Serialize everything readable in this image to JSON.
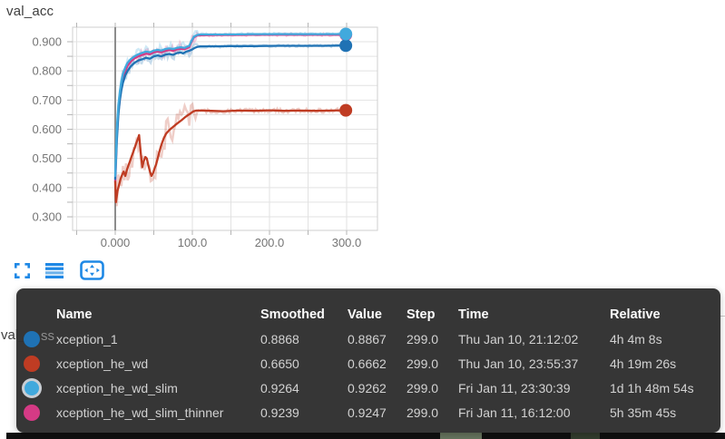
{
  "chart_data": {
    "type": "line",
    "title": "val_acc",
    "xlabel": "",
    "ylabel": "",
    "grid": true,
    "xlim": [
      -55,
      340
    ],
    "ylim": [
      0.253,
      0.947
    ],
    "x_ticks": [
      {
        "v": 0,
        "label": "0.000"
      },
      {
        "v": 100,
        "label": "100.0"
      },
      {
        "v": 200,
        "label": "200.0"
      },
      {
        "v": 300,
        "label": "300.0"
      }
    ],
    "y_ticks": [
      {
        "v": 0.9,
        "label": "0.900"
      },
      {
        "v": 0.8,
        "label": "0.800"
      },
      {
        "v": 0.7,
        "label": "0.700"
      },
      {
        "v": 0.6,
        "label": "0.600"
      },
      {
        "v": 0.5,
        "label": "0.500"
      },
      {
        "v": 0.4,
        "label": "0.400"
      },
      {
        "v": 0.3,
        "label": "0.300"
      }
    ],
    "series": [
      {
        "name": "xception_he_wd_slim_thinner",
        "color": "#d53a85",
        "raw_amp_early": 0.02,
        "raw_amp_late": 0.004,
        "points": [
          [
            0,
            0.42
          ],
          [
            2,
            0.58
          ],
          [
            4,
            0.66
          ],
          [
            6,
            0.715
          ],
          [
            8,
            0.75
          ],
          [
            10,
            0.778
          ],
          [
            13,
            0.8
          ],
          [
            16,
            0.818
          ],
          [
            20,
            0.832
          ],
          [
            25,
            0.843
          ],
          [
            30,
            0.85
          ],
          [
            35,
            0.855
          ],
          [
            40,
            0.859
          ],
          [
            45,
            0.857
          ],
          [
            50,
            0.864
          ],
          [
            55,
            0.866
          ],
          [
            60,
            0.864
          ],
          [
            65,
            0.869
          ],
          [
            70,
            0.871
          ],
          [
            75,
            0.869
          ],
          [
            80,
            0.874
          ],
          [
            85,
            0.876
          ],
          [
            90,
            0.874
          ],
          [
            93,
            0.878
          ],
          [
            96,
            0.882
          ],
          [
            99,
            0.9
          ],
          [
            102,
            0.915
          ],
          [
            106,
            0.921
          ],
          [
            110,
            0.922
          ],
          [
            130,
            0.923
          ],
          [
            150,
            0.923
          ],
          [
            180,
            0.924
          ],
          [
            210,
            0.924
          ],
          [
            240,
            0.924
          ],
          [
            270,
            0.924
          ],
          [
            299,
            0.9239
          ]
        ]
      },
      {
        "name": "xception_1",
        "color": "#1f72b4",
        "raw_amp_early": 0.018,
        "raw_amp_late": 0.004,
        "points": [
          [
            0,
            0.43
          ],
          [
            2,
            0.56
          ],
          [
            4,
            0.65
          ],
          [
            6,
            0.7
          ],
          [
            8,
            0.735
          ],
          [
            10,
            0.76
          ],
          [
            13,
            0.785
          ],
          [
            16,
            0.8
          ],
          [
            20,
            0.815
          ],
          [
            25,
            0.828
          ],
          [
            30,
            0.836
          ],
          [
            35,
            0.84
          ],
          [
            40,
            0.845
          ],
          [
            45,
            0.842
          ],
          [
            50,
            0.85
          ],
          [
            55,
            0.853
          ],
          [
            60,
            0.85
          ],
          [
            65,
            0.856
          ],
          [
            70,
            0.858
          ],
          [
            75,
            0.855
          ],
          [
            80,
            0.861
          ],
          [
            85,
            0.863
          ],
          [
            88,
            0.86
          ],
          [
            92,
            0.866
          ],
          [
            96,
            0.869
          ],
          [
            100,
            0.874
          ],
          [
            103,
            0.879
          ],
          [
            106,
            0.882
          ],
          [
            110,
            0.884
          ],
          [
            130,
            0.884
          ],
          [
            150,
            0.885
          ],
          [
            180,
            0.885
          ],
          [
            210,
            0.886
          ],
          [
            240,
            0.886
          ],
          [
            270,
            0.886
          ],
          [
            299,
            0.8868
          ]
        ]
      },
      {
        "name": "xception_he_wd_slim",
        "color": "#41a9dd",
        "raw_amp_early": 0.018,
        "raw_amp_late": 0.004,
        "points": [
          [
            0,
            0.44
          ],
          [
            2,
            0.6
          ],
          [
            4,
            0.68
          ],
          [
            6,
            0.73
          ],
          [
            8,
            0.765
          ],
          [
            10,
            0.79
          ],
          [
            13,
            0.812
          ],
          [
            16,
            0.828
          ],
          [
            20,
            0.84
          ],
          [
            25,
            0.85
          ],
          [
            30,
            0.857
          ],
          [
            35,
            0.862
          ],
          [
            40,
            0.866
          ],
          [
            45,
            0.864
          ],
          [
            50,
            0.87
          ],
          [
            55,
            0.872
          ],
          [
            60,
            0.87
          ],
          [
            65,
            0.875
          ],
          [
            70,
            0.877
          ],
          [
            75,
            0.875
          ],
          [
            80,
            0.879
          ],
          [
            85,
            0.881
          ],
          [
            90,
            0.879
          ],
          [
            93,
            0.883
          ],
          [
            96,
            0.886
          ],
          [
            99,
            0.903
          ],
          [
            102,
            0.917
          ],
          [
            106,
            0.923
          ],
          [
            110,
            0.925
          ],
          [
            130,
            0.925
          ],
          [
            150,
            0.925
          ],
          [
            180,
            0.926
          ],
          [
            210,
            0.926
          ],
          [
            240,
            0.926
          ],
          [
            270,
            0.926
          ],
          [
            299,
            0.9264
          ]
        ]
      },
      {
        "name": "xception_he_wd",
        "color": "#bf3c23",
        "raw_amp_early": 0.045,
        "raw_amp_late": 0.007,
        "points": [
          [
            0,
            0.42
          ],
          [
            1,
            0.35
          ],
          [
            3,
            0.39
          ],
          [
            5,
            0.41
          ],
          [
            7,
            0.43
          ],
          [
            9,
            0.445
          ],
          [
            11,
            0.455
          ],
          [
            13,
            0.44
          ],
          [
            15,
            0.46
          ],
          [
            17,
            0.475
          ],
          [
            19,
            0.49
          ],
          [
            21,
            0.505
          ],
          [
            23,
            0.52
          ],
          [
            25,
            0.535
          ],
          [
            27,
            0.55
          ],
          [
            29,
            0.565
          ],
          [
            31,
            0.58
          ],
          [
            33,
            0.52
          ],
          [
            35,
            0.47
          ],
          [
            37,
            0.49
          ],
          [
            39,
            0.505
          ],
          [
            41,
            0.5
          ],
          [
            43,
            0.475
          ],
          [
            45,
            0.455
          ],
          [
            47,
            0.44
          ],
          [
            49,
            0.45
          ],
          [
            51,
            0.465
          ],
          [
            53,
            0.48
          ],
          [
            55,
            0.5
          ],
          [
            57,
            0.52
          ],
          [
            59,
            0.54
          ],
          [
            61,
            0.555
          ],
          [
            63,
            0.57
          ],
          [
            66,
            0.585
          ],
          [
            70,
            0.597
          ],
          [
            74,
            0.606
          ],
          [
            78,
            0.615
          ],
          [
            82,
            0.623
          ],
          [
            86,
            0.631
          ],
          [
            90,
            0.64
          ],
          [
            94,
            0.648
          ],
          [
            97,
            0.653
          ],
          [
            101,
            0.661
          ],
          [
            105,
            0.664
          ],
          [
            110,
            0.664
          ],
          [
            125,
            0.663
          ],
          [
            140,
            0.662
          ],
          [
            160,
            0.664
          ],
          [
            180,
            0.663
          ],
          [
            200,
            0.665
          ],
          [
            220,
            0.663
          ],
          [
            240,
            0.664
          ],
          [
            260,
            0.663
          ],
          [
            280,
            0.664
          ],
          [
            299,
            0.665
          ]
        ]
      }
    ]
  },
  "toolbar": {
    "icons": [
      "fullscreen-icon",
      "runs-selector-icon",
      "fit-domain-icon"
    ]
  },
  "next_chart": {
    "title": "val_loss",
    "visible_prefix": "val_",
    "visible_suffix": "ss"
  },
  "tooltip": {
    "columns": [
      "Name",
      "Smoothed",
      "Value",
      "Step",
      "Time",
      "Relative"
    ],
    "rows": [
      {
        "name": "xception_1",
        "color": "#1f72b4",
        "highlighted": false,
        "smoothed": "0.8868",
        "value": "0.8867",
        "step": "299.0",
        "time": "Thu Jan 10, 21:12:02",
        "relative": "4h 4m 8s"
      },
      {
        "name": "xception_he_wd",
        "color": "#bf3c23",
        "highlighted": false,
        "smoothed": "0.6650",
        "value": "0.6662",
        "step": "299.0",
        "time": "Thu Jan 10, 23:55:37",
        "relative": "4h 19m 26s"
      },
      {
        "name": "xception_he_wd_slim",
        "color": "#41a9dd",
        "highlighted": true,
        "smoothed": "0.9264",
        "value": "0.9262",
        "step": "299.0",
        "time": "Fri Jan 11, 23:30:39",
        "relative": "1d 1h 48m 54s"
      },
      {
        "name": "xception_he_wd_slim_thinner",
        "color": "#d53a85",
        "highlighted": false,
        "smoothed": "0.9239",
        "value": "0.9247",
        "step": "299.0",
        "time": "Fri Jan 11, 16:12:00",
        "relative": "5h 35m 45s"
      }
    ]
  },
  "colors": {
    "accent": "#1e88e5",
    "grid": "#e2e2e2",
    "axis_text": "#757575",
    "panel_bg": "#303030"
  }
}
